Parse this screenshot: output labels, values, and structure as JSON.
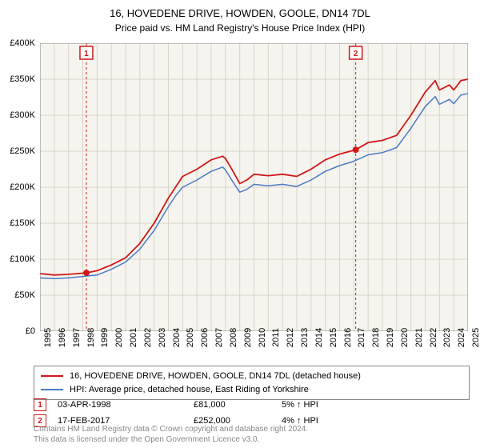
{
  "header": {
    "title": "16, HOVEDENE DRIVE, HOWDEN, GOOLE, DN14 7DL",
    "subtitle": "Price paid vs. HM Land Registry's House Price Index (HPI)"
  },
  "chart": {
    "type": "line",
    "background_color": "#ffffff",
    "plot_background_color": "#f6f4ee",
    "grid_color": "#d9d5c8",
    "border_color": "#888888",
    "ylim": [
      0,
      400000
    ],
    "ytick_step": 50000,
    "y_labels": [
      "£0",
      "£50K",
      "£100K",
      "£150K",
      "£200K",
      "£250K",
      "£300K",
      "£350K",
      "£400K"
    ],
    "xlim": [
      1995,
      2025
    ],
    "x_labels": [
      "1995",
      "1996",
      "1997",
      "1998",
      "1999",
      "2000",
      "2001",
      "2002",
      "2003",
      "2004",
      "2005",
      "2006",
      "2007",
      "2008",
      "2009",
      "2010",
      "2011",
      "2012",
      "2013",
      "2014",
      "2015",
      "2016",
      "2017",
      "2018",
      "2019",
      "2020",
      "2021",
      "2022",
      "2023",
      "2024",
      "2025"
    ],
    "x_label_fontsize": 11,
    "y_label_fontsize": 11,
    "series": [
      {
        "name": "price_paid",
        "label": "16, HOVEDENE DRIVE, HOWDEN, GOOLE, DN14 7DL (detached house)",
        "color": "#d01818",
        "line_width": 1.8,
        "data": [
          [
            1995,
            80000
          ],
          [
            1996,
            78000
          ],
          [
            1997,
            79000
          ],
          [
            1998.25,
            81000
          ],
          [
            1999,
            84000
          ],
          [
            2000,
            92000
          ],
          [
            2001,
            102000
          ],
          [
            2002,
            122000
          ],
          [
            2003,
            150000
          ],
          [
            2004,
            185000
          ],
          [
            2004.5,
            200000
          ],
          [
            2005,
            215000
          ],
          [
            2006,
            225000
          ],
          [
            2007,
            238000
          ],
          [
            2007.8,
            243000
          ],
          [
            2008,
            240000
          ],
          [
            2008.5,
            223000
          ],
          [
            2009,
            205000
          ],
          [
            2009.5,
            210000
          ],
          [
            2010,
            218000
          ],
          [
            2011,
            216000
          ],
          [
            2012,
            218000
          ],
          [
            2013,
            215000
          ],
          [
            2014,
            225000
          ],
          [
            2015,
            238000
          ],
          [
            2016,
            246000
          ],
          [
            2017.13,
            252000
          ],
          [
            2018,
            262000
          ],
          [
            2019,
            265000
          ],
          [
            2020,
            272000
          ],
          [
            2021,
            300000
          ],
          [
            2022,
            332000
          ],
          [
            2022.7,
            348000
          ],
          [
            2023,
            335000
          ],
          [
            2023.7,
            342000
          ],
          [
            2024,
            335000
          ],
          [
            2024.5,
            348000
          ],
          [
            2025,
            350000
          ]
        ]
      },
      {
        "name": "hpi",
        "label": "HPI: Average price, detached house, East Riding of Yorkshire",
        "color": "#4a7bc4",
        "line_width": 1.5,
        "data": [
          [
            1995,
            74000
          ],
          [
            1996,
            73000
          ],
          [
            1997,
            74000
          ],
          [
            1998,
            76000
          ],
          [
            1999,
            78000
          ],
          [
            2000,
            86000
          ],
          [
            2001,
            96000
          ],
          [
            2002,
            114000
          ],
          [
            2003,
            140000
          ],
          [
            2004,
            173000
          ],
          [
            2004.5,
            188000
          ],
          [
            2005,
            200000
          ],
          [
            2006,
            210000
          ],
          [
            2007,
            222000
          ],
          [
            2007.8,
            228000
          ],
          [
            2008,
            224000
          ],
          [
            2008.5,
            208000
          ],
          [
            2009,
            193000
          ],
          [
            2009.5,
            197000
          ],
          [
            2010,
            204000
          ],
          [
            2011,
            202000
          ],
          [
            2012,
            204000
          ],
          [
            2013,
            201000
          ],
          [
            2014,
            210000
          ],
          [
            2015,
            222000
          ],
          [
            2016,
            230000
          ],
          [
            2017,
            236000
          ],
          [
            2018,
            245000
          ],
          [
            2019,
            248000
          ],
          [
            2020,
            255000
          ],
          [
            2021,
            282000
          ],
          [
            2022,
            312000
          ],
          [
            2022.7,
            326000
          ],
          [
            2023,
            315000
          ],
          [
            2023.7,
            322000
          ],
          [
            2024,
            316000
          ],
          [
            2024.5,
            328000
          ],
          [
            2025,
            330000
          ]
        ]
      }
    ],
    "transaction_markers": [
      {
        "n": "1",
        "year": 1998.25,
        "value": 81000,
        "color": "#d01818"
      },
      {
        "n": "2",
        "year": 2017.13,
        "value": 252000,
        "color": "#d01818"
      }
    ],
    "marker_dot_color": "#d01818",
    "marker_line_color": "#d01818"
  },
  "legend": {
    "rows": [
      {
        "color": "#d01818",
        "label_path": "chart.series.0.label"
      },
      {
        "color": "#4a7bc4",
        "label_path": "chart.series.1.label"
      }
    ]
  },
  "transactions": [
    {
      "n": "1",
      "date": "03-APR-1998",
      "price": "£81,000",
      "delta": "5% ↑ HPI",
      "color": "#d01818"
    },
    {
      "n": "2",
      "date": "17-FEB-2017",
      "price": "£252,000",
      "delta": "4% ↑ HPI",
      "color": "#d01818"
    }
  ],
  "footer": {
    "line1": "Contains HM Land Registry data © Crown copyright and database right 2024.",
    "line2": "This data is licensed under the Open Government Licence v3.0."
  }
}
